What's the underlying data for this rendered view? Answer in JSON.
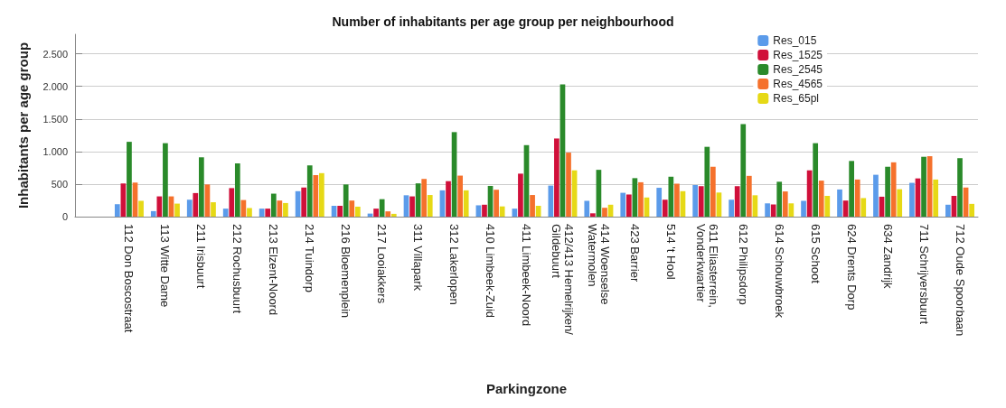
{
  "chart_data": {
    "type": "bar",
    "title": "Number of inhabitants per age group per neighbourhood",
    "xlabel": "Parkingzone",
    "ylabel": "Inhabitants per age group",
    "categories": [
      null,
      "112 Don Boscostraat",
      "113 Witte Dame",
      "211 Irisbuurt",
      "212 Rochusbuurt",
      "213 Elzent-Noord",
      "214 Tuindorp",
      "216 Bloemenplein",
      "217 Looiakkers",
      "311 Villapark",
      "312 Lakerlopen",
      "410 Limbeek-Zuid",
      "411 Limbeek-Noord",
      "412/413 Hemelrijken/Gildebuurt",
      "414 Woenselse Watermolen",
      "423 Barrier",
      "514 't Hool",
      "611 Eliasterrein, Vonderkwartier",
      "612 Philipsdorp",
      "614 Schouwbroek",
      "615 Schoot",
      "624 Drents Dorp",
      "634 Zandrijk",
      "711 Schrijversbuurt",
      "712 Oude Spoorbaan"
    ],
    "series": [
      {
        "name": "Res_015",
        "color": "#5b9bea",
        "values": [
          null,
          191,
          85,
          260,
          123,
          123,
          391,
          166,
          47,
          328,
          404,
          174,
          123,
          477,
          243,
          366,
          443,
          485,
          260,
          204,
          243,
          417,
          643,
          519,
          183
        ]
      },
      {
        "name": "Res_1525",
        "color": "#d0103a",
        "values": [
          null,
          511,
          311,
          362,
          438,
          123,
          447,
          166,
          123,
          311,
          545,
          183,
          660,
          1200,
          51,
          340,
          260,
          468,
          468,
          187,
          711,
          247,
          306,
          587,
          319
        ]
      },
      {
        "name": "Res_2545",
        "color": "#2a8a2a",
        "values": [
          null,
          1149,
          1128,
          911,
          817,
          353,
          787,
          494,
          268,
          511,
          1298,
          472,
          1098,
          2030,
          719,
          591,
          613,
          1072,
          1421,
          536,
          1128,
          855,
          766,
          919,
          898
        ]
      },
      {
        "name": "Res_4565",
        "color": "#f5712c",
        "values": [
          null,
          523,
          311,
          494,
          255,
          247,
          638,
          247,
          81,
          579,
          630,
          413,
          332,
          983,
          136,
          528,
          506,
          766,
          626,
          387,
          553,
          570,
          834,
          928,
          447
        ]
      },
      {
        "name": "Res_65pl",
        "color": "#e6d916",
        "values": [
          null,
          243,
          200,
          221,
          132,
          209,
          668,
          153,
          43,
          332,
          404,
          157,
          166,
          711,
          183,
          294,
          391,
          370,
          328,
          204,
          319,
          285,
          421,
          570,
          196
        ]
      }
    ],
    "ylim": [
      0,
      2800
    ],
    "yticks": [
      0,
      500,
      {
        "value": 1000,
        "label": "1.000"
      },
      {
        "value": 1500,
        "label": "1.500"
      },
      {
        "value": 2000,
        "label": "2.000"
      },
      {
        "value": 2500,
        "label": "2.500"
      }
    ],
    "grid": "y",
    "legend": "top right"
  }
}
